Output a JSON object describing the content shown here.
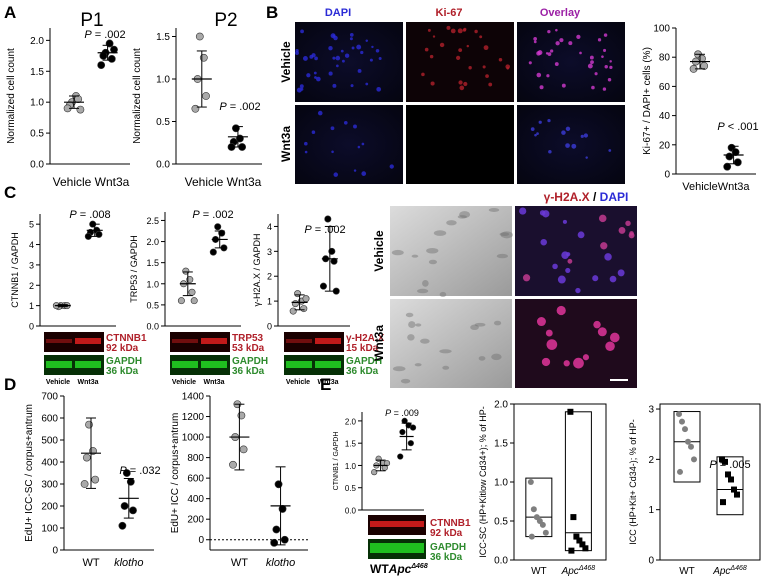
{
  "panel_labels": [
    "A",
    "B",
    "C",
    "D",
    "E"
  ],
  "colors": {
    "gray_dot": "#a9a9a9",
    "black_dot": "#000000",
    "dapi_blue": "#2b2bd6",
    "ki67_red": "#b0202a",
    "overlay_purple": "#9b1fa5",
    "blot_red": "#c21a1a",
    "blot_green": "#1fbf1f",
    "label_red": "#b0202a",
    "label_green": "#2e8b2e"
  },
  "panelA": {
    "p1": {
      "title": "P1",
      "ylabel": "Normalized cell count",
      "yticks": [
        "0.0",
        "0.5",
        "1.0",
        "1.5",
        "2.0"
      ],
      "xlabels": [
        "Vehicle",
        "Wnt3a"
      ],
      "pvalue": ".002"
    },
    "p2": {
      "title": "P2",
      "ylabel": "Normalized cell count",
      "yticks": [
        "0.0",
        "0.5",
        "1.0",
        "1.5"
      ],
      "xlabels": [
        "Vehicle",
        "Wnt3a"
      ],
      "pvalue": ".002"
    }
  },
  "panelB": {
    "channels": [
      "DAPI",
      "Ki-67",
      "Overlay"
    ],
    "rows": [
      "Vehicle",
      "Wnt3a"
    ],
    "plot": {
      "ylabel": "Ki-67+ / DAPI+ cells (%)",
      "yticks": [
        "0",
        "20",
        "40",
        "60",
        "80",
        "100"
      ],
      "xlabels": [
        "Vehicle",
        "Wnt3a"
      ],
      "pvalue": "< .001"
    }
  },
  "panelC": {
    "plots": [
      {
        "ylabel": "CTNNB1 / GAPDH",
        "yticks": [
          "0",
          "1",
          "2",
          "3",
          "4",
          "5"
        ],
        "pvalue": ".008",
        "blot_label": "CTNNB1",
        "blot_kda": "92 kDa"
      },
      {
        "ylabel": "TRP53 / GAPDH",
        "yticks": [
          "0.0",
          "0.5",
          "1.0",
          "1.5",
          "2.0",
          "2.5"
        ],
        "pvalue": ".002",
        "blot_label": "TRP53",
        "blot_kda": "53 kDa"
      },
      {
        "ylabel": "γ-H2A.X / GAPDH",
        "yticks": [
          "0",
          "1",
          "2",
          "3",
          "4"
        ],
        "pvalue": ".002",
        "blot_label": "γ-H2A.X",
        "blot_kda": "15 kDa"
      }
    ],
    "gapdh_label": "GAPDH",
    "gapdh_kda": "36 kDa",
    "lane_labels": [
      "Vehicle",
      "Wnt3a"
    ],
    "image_header_part1": "γ-H2A.X",
    "image_header_sep": " / ",
    "image_header_part2": "DAPI",
    "image_rows": [
      "Vehicle",
      "Wnt3a"
    ]
  },
  "panelD": {
    "plot1": {
      "ylabel": "EdU+ ICC-SC / corpus+antrum",
      "yticks": [
        "0",
        "100",
        "200",
        "300",
        "400",
        "500",
        "600",
        "700"
      ],
      "xlabels": [
        "WT",
        "klotho"
      ],
      "pvalue": ".032"
    },
    "plot2": {
      "ylabel": "EdU+ ICC / corpus+antrum",
      "yticks": [
        "0",
        "200",
        "400",
        "600",
        "800",
        "1000",
        "1200",
        "1400"
      ],
      "xlabels": [
        "WT",
        "klotho"
      ]
    }
  },
  "panelE": {
    "blot_plot": {
      "ylabel": "CTNNB1 / GAPDH",
      "yticks": [
        "0.0",
        "0.5",
        "1.0",
        "1.5",
        "2.0"
      ],
      "pvalue": ".009",
      "blot_label": "CTNNB1",
      "blot_kda": "92 kDa",
      "gapdh_label": "GAPDH",
      "gapdh_kda": "36 kDa",
      "lane_wt": "WT",
      "lane_apc": "Apc",
      "lane_apc_sup": "Δ468"
    },
    "box1": {
      "ylabel": "ICC-SC (HP+Kitlow Cd34+); % of HP-",
      "yticks": [
        "0.0",
        "0.5",
        "1.0",
        "1.5",
        "2.0"
      ],
      "xlabels": [
        "WT",
        "Apc"
      ],
      "x_sup": "Δ468"
    },
    "box2": {
      "ylabel": "ICC (HP+Kit+ Cd34-); % of HP-",
      "yticks": [
        "0",
        "1",
        "2",
        "3"
      ],
      "xlabels": [
        "WT",
        "Apc"
      ],
      "x_sup": "Δ468",
      "pvalue": ".005"
    }
  },
  "chart_data": [
    {
      "type": "scatter",
      "title": "P1",
      "ylabel": "Normalized cell count",
      "ylim": [
        0,
        2.2
      ],
      "categories": [
        "Vehicle",
        "Wnt3a"
      ],
      "series": [
        {
          "name": "Vehicle",
          "values": [
            1.0,
            1.1,
            0.95,
            1.05,
            0.9,
            0.88
          ]
        },
        {
          "name": "Wnt3a",
          "values": [
            1.8,
            1.95,
            1.75,
            1.7,
            1.6,
            1.85
          ]
        }
      ],
      "summary": [
        {
          "mean": 1.0,
          "sd": 0.1
        },
        {
          "mean": 1.8,
          "sd": 0.12
        }
      ]
    },
    {
      "type": "scatter",
      "title": "P2",
      "ylabel": "Normalized cell count",
      "ylim": [
        0,
        1.6
      ],
      "categories": [
        "Vehicle",
        "Wnt3a"
      ],
      "series": [
        {
          "name": "Vehicle",
          "values": [
            1.5,
            1.25,
            1.0,
            0.8,
            0.65
          ]
        },
        {
          "name": "Wnt3a",
          "values": [
            0.42,
            0.3,
            0.26,
            0.2,
            0.2
          ]
        }
      ],
      "summary": [
        {
          "mean": 1.0,
          "sd": 0.33
        },
        {
          "mean": 0.32,
          "sd": 0.12
        }
      ]
    },
    {
      "type": "scatter",
      "ylabel": "Ki-67+ / DAPI+ cells (%)",
      "ylim": [
        0,
        100
      ],
      "categories": [
        "Vehicle",
        "Wnt3a"
      ],
      "series": [
        {
          "name": "Vehicle",
          "values": [
            82,
            79,
            77,
            74,
            72
          ]
        },
        {
          "name": "Wnt3a",
          "values": [
            18,
            15,
            12,
            8,
            5
          ]
        }
      ],
      "summary": [
        {
          "mean": 77,
          "sd": 5
        },
        {
          "mean": 13,
          "sd": 6
        }
      ]
    },
    {
      "type": "scatter",
      "ylabel": "CTNNB1 / GAPDH",
      "ylim": [
        0,
        5.5
      ],
      "categories": [
        "Vehicle",
        "Wnt3a"
      ],
      "series": [
        {
          "name": "Vehicle",
          "values": [
            1.0,
            1.0,
            0.95,
            1.0,
            1.0
          ]
        },
        {
          "name": "Wnt3a",
          "values": [
            5.0,
            4.7,
            4.6,
            4.5,
            4.4
          ]
        }
      ],
      "summary": [
        {
          "mean": 1.0,
          "sd": 0.05
        },
        {
          "mean": 4.7,
          "sd": 0.3
        }
      ]
    },
    {
      "type": "scatter",
      "ylabel": "TRP53 / GAPDH",
      "ylim": [
        0,
        2.7
      ],
      "categories": [
        "Vehicle",
        "Wnt3a"
      ],
      "series": [
        {
          "name": "Vehicle",
          "values": [
            1.3,
            1.1,
            1.0,
            0.8,
            0.6,
            0.6
          ]
        },
        {
          "name": "Wnt3a",
          "values": [
            2.35,
            2.2,
            2.05,
            1.85,
            1.75
          ]
        }
      ],
      "summary": [
        {
          "mean": 1.0,
          "sd": 0.28
        },
        {
          "mean": 2.05,
          "sd": 0.2
        }
      ]
    },
    {
      "type": "scatter",
      "ylabel": "γ-H2A.X / GAPDH",
      "ylim": [
        0,
        4.5
      ],
      "categories": [
        "Vehicle",
        "Wnt3a"
      ],
      "series": [
        {
          "name": "Vehicle",
          "values": [
            1.3,
            1.0,
            0.9,
            0.7,
            0.6,
            1.1
          ]
        },
        {
          "name": "Wnt3a",
          "values": [
            4.3,
            3.0,
            2.7,
            2.6,
            1.6,
            1.4
          ]
        }
      ],
      "summary": [
        {
          "mean": 0.95,
          "sd": 0.3
        },
        {
          "mean": 2.7,
          "sd": 1.3
        }
      ]
    },
    {
      "type": "scatter",
      "ylabel": "EdU+ ICC-SC / corpus+antrum",
      "ylim": [
        0,
        700
      ],
      "categories": [
        "WT",
        "klotho"
      ],
      "series": [
        {
          "name": "WT",
          "values": [
            570,
            450,
            420,
            320,
            300
          ]
        },
        {
          "name": "klotho",
          "values": [
            350,
            310,
            200,
            180,
            110
          ]
        }
      ],
      "summary": [
        {
          "mean": 440,
          "sd": 160
        },
        {
          "mean": 235,
          "sd": 90
        }
      ]
    },
    {
      "type": "scatter",
      "ylabel": "EdU+ ICC / corpus+antrum",
      "ylim": [
        -100,
        1400
      ],
      "categories": [
        "WT",
        "klotho"
      ],
      "series": [
        {
          "name": "WT",
          "values": [
            1320,
            1210,
            1000,
            880,
            730
          ]
        },
        {
          "name": "klotho",
          "values": [
            540,
            300,
            100,
            0,
            -30
          ]
        }
      ],
      "summary": [
        {
          "mean": 1000,
          "sd": 320
        },
        {
          "mean": 330,
          "sd": 380
        }
      ]
    },
    {
      "type": "scatter",
      "ylabel": "CTNNB1 / GAPDH",
      "ylim": [
        0,
        2.2
      ],
      "categories": [
        "WT",
        "Apc Δ468"
      ],
      "series": [
        {
          "name": "WT",
          "values": [
            1.15,
            1.05,
            1.0,
            0.95,
            0.85,
            1.05
          ]
        },
        {
          "name": "Apc Δ468",
          "values": [
            2.0,
            1.9,
            1.75,
            1.5,
            1.2,
            1.85
          ]
        }
      ],
      "summary": [
        {
          "mean": 1.0,
          "sd": 0.12
        },
        {
          "mean": 1.65,
          "sd": 0.3
        }
      ]
    },
    {
      "type": "box",
      "ylabel": "ICC-SC (HP+Kitlow Cd34+); % of HP-",
      "ylim": [
        0,
        2.0
      ],
      "categories": [
        "WT",
        "Apc Δ468"
      ],
      "series": [
        {
          "name": "WT",
          "values": [
            1.0,
            0.65,
            0.55,
            0.5,
            0.45,
            0.35,
            0.3
          ]
        },
        {
          "name": "Apc Δ468",
          "values": [
            1.9,
            0.55,
            0.3,
            0.25,
            0.2,
            0.15,
            0.12
          ]
        }
      ],
      "boxes": [
        {
          "min": 0.3,
          "max": 1.05,
          "mean": 0.55
        },
        {
          "min": 0.12,
          "max": 1.9,
          "mean": 0.35
        }
      ]
    },
    {
      "type": "box",
      "ylabel": "ICC (HP+Kit+ Cd34-); % of HP-",
      "ylim": [
        0,
        3.1
      ],
      "categories": [
        "WT",
        "Apc Δ468"
      ],
      "series": [
        {
          "name": "WT",
          "values": [
            2.9,
            2.75,
            2.6,
            2.35,
            2.25,
            2.0,
            1.75
          ]
        },
        {
          "name": "Apc Δ468",
          "values": [
            2.0,
            1.95,
            1.7,
            1.6,
            1.4,
            1.3,
            1.15
          ]
        }
      ],
      "boxes": [
        {
          "min": 1.55,
          "max": 2.95,
          "mean": 2.35
        },
        {
          "min": 0.9,
          "max": 2.05,
          "mean": 1.4
        }
      ]
    }
  ]
}
